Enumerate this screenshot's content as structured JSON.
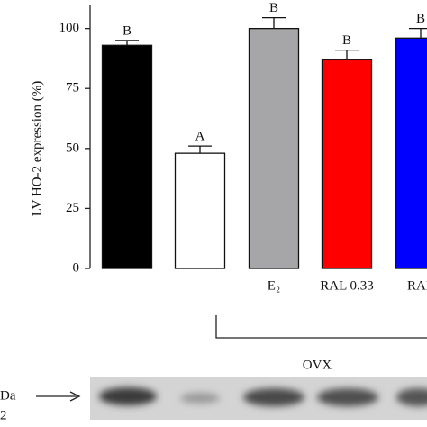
{
  "chart_data": {
    "type": "bar",
    "y_label": "LV HO-2 expression (%)",
    "categories": [
      null,
      null,
      "E₂",
      "RAL 0.33",
      "RAL"
    ],
    "values": [
      93,
      48,
      100,
      87,
      96
    ],
    "errors": [
      2,
      3,
      4.5,
      4,
      4
    ],
    "letters": [
      "B",
      "A",
      "B",
      "B",
      "B"
    ],
    "colors": [
      "#000000",
      "#ffffff",
      "#a6a6a8",
      "#ff0000",
      "#0000ff"
    ],
    "ylim": [
      0,
      110
    ],
    "yticks": [
      0,
      25,
      50,
      75,
      100
    ],
    "group_label": "OVX",
    "blot_labels": [
      "Da",
      "2"
    ]
  }
}
